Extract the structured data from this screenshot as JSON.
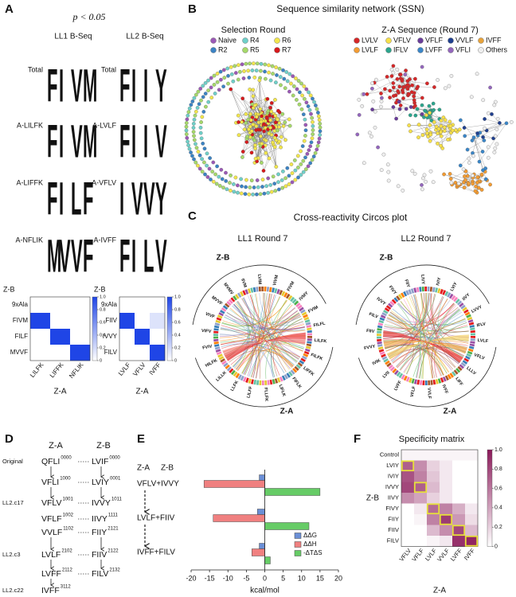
{
  "panel_labels": [
    "A",
    "B",
    "C",
    "D",
    "E",
    "F"
  ],
  "logos": {
    "title": "p < 0.05",
    "columns": [
      {
        "title": "LL1 B-Seq",
        "rows": [
          {
            "label": "Total",
            "letters": [
              "F",
              "I",
              "V",
              "M"
            ]
          },
          {
            "label": "A-LILFK",
            "letters": [
              "F",
              "I",
              "V",
              "M"
            ]
          },
          {
            "label": "A-LIFFK",
            "letters": [
              "F",
              "I",
              "L",
              "F"
            ]
          },
          {
            "label": "A-NFLIK",
            "letters": [
              "M",
              "V",
              "V",
              "F"
            ]
          }
        ]
      },
      {
        "title": "LL2 B-Seq",
        "rows": [
          {
            "label": "Total",
            "letters": [
              "F",
              "I",
              "I",
              "Y"
            ]
          },
          {
            "label": "A-LVLF",
            "letters": [
              "F",
              "I",
              "I",
              "V"
            ]
          },
          {
            "label": "A-VFLV",
            "letters": [
              "I",
              "V",
              "V",
              "Y"
            ]
          },
          {
            "label": "A-IVFF",
            "letters": [
              "F",
              "I",
              "L",
              "V"
            ]
          }
        ]
      }
    ]
  },
  "ssn": {
    "title": "Sequence similarity network (SSN)",
    "networks": [
      {
        "title": "Selection Round",
        "legend": [
          {
            "name": "Naive",
            "color": "#9b59b6"
          },
          {
            "name": "R2",
            "color": "#3b83c4"
          },
          {
            "name": "R4",
            "color": "#6fd0c9"
          },
          {
            "name": "R5",
            "color": "#a6d96a"
          },
          {
            "name": "R6",
            "color": "#f2e64d"
          },
          {
            "name": "R7",
            "color": "#d7191c"
          }
        ]
      },
      {
        "title": "Z-A Sequence (Round 7)",
        "legend": [
          {
            "name": "LVLV",
            "color": "#d62728"
          },
          {
            "name": "LVLF",
            "color": "#f39c33"
          },
          {
            "name": "VFLV",
            "color": "#f7e04a"
          },
          {
            "name": "IFLV",
            "color": "#2ca58d"
          },
          {
            "name": "VFLF",
            "color": "#6a3d9a"
          },
          {
            "name": "LVFF",
            "color": "#3a86c8"
          },
          {
            "name": "VVLF",
            "color": "#1f3f8f"
          },
          {
            "name": "VFLI",
            "color": "#9467bd"
          },
          {
            "name": "IVFF",
            "color": "#e8a33a"
          },
          {
            "name": "Others",
            "color": "#eeeeee"
          }
        ]
      }
    ]
  },
  "circos": {
    "title": "Cross-reactivity Circos plot",
    "plots": [
      {
        "title": "LL1 Round 7",
        "zb_label": "Z-B",
        "za_label": "Z-A",
        "labels": [
          "FILFL",
          "LILFK",
          "FILFK",
          "LIFFK",
          "FIFLK",
          "LIFLK",
          "FLLFK",
          "LILFF",
          "LLFK",
          "LILLK",
          "HILFK",
          "FVIV",
          "VIFV",
          "VIVF",
          "MVVF",
          "MVMV",
          "IIVM",
          "LVIM",
          "VIVM",
          "FIVM",
          "IVMY",
          "FVIM"
        ]
      },
      {
        "title": "LL2 Round 7",
        "zb_label": "Z-B",
        "za_label": "Z-A",
        "labels": [
          "IFLV",
          "LVLF",
          "VFLV",
          "LLLV",
          "LIFF",
          "IVFF",
          "VVLF",
          "VFLF",
          "LVFF",
          "LVII",
          "IVIK",
          "FVVY",
          "FIIV",
          "FILV",
          "IVVY",
          "FIVY",
          "FIIY",
          "LIVY",
          "IVIY",
          "LVIY",
          "IIVY",
          "LVVY"
        ]
      }
    ]
  },
  "pathway": {
    "za_header": "Z-A",
    "zb_header": "Z-B",
    "rows": [
      {
        "label": "Original",
        "za": {
          "seq": "QFLI",
          "code": "0000"
        },
        "zb": {
          "seq": "LVIF",
          "code": "0000"
        }
      },
      {
        "za": {
          "seq": "VFLI",
          "code": "1000"
        },
        "zb": {
          "seq": "LVIY",
          "code": "0001"
        }
      },
      {
        "label": "LL2.c17",
        "za": {
          "seq": "VFLV",
          "code": "1001"
        },
        "zb": {
          "seq": "IVVY",
          "code": "1011"
        }
      },
      {
        "za": {
          "seq": "VFLF",
          "code": "1002"
        },
        "zb": {
          "seq": "IIVY",
          "code": "1111"
        }
      },
      {
        "za": {
          "seq": "VVLF",
          "code": "1102"
        },
        "zb": {
          "seq": "FIIY",
          "code": "2121"
        }
      },
      {
        "label": "LL2.c3",
        "za": {
          "seq": "LVLF",
          "code": "2102"
        },
        "zb": {
          "seq": "FIIV",
          "code": "2122"
        }
      },
      {
        "za": {
          "seq": "LVFF",
          "code": "2112"
        },
        "zb": {
          "seq": "FILV",
          "code": "2132"
        }
      },
      {
        "label": "LL2.c22",
        "za": {
          "seq": "IVFF",
          "code": "3112"
        }
      }
    ]
  },
  "chart_data": [
    {
      "type": "heatmap",
      "ylabel": "Z-B",
      "xlabel": "Z-A",
      "rows": [
        "9xAla",
        "FIVM",
        "FILF",
        "MVVF"
      ],
      "columns": [
        "LILFK",
        "LIFFK",
        "NFLIK"
      ],
      "values": [
        [
          0,
          0,
          0
        ],
        [
          1,
          0,
          0
        ],
        [
          0,
          1,
          0
        ],
        [
          0,
          0,
          1
        ]
      ],
      "clim": [
        0,
        1
      ],
      "colors": [
        "#ffffff",
        "#1f45e6"
      ],
      "colorbar_ticks": [
        0,
        0.2,
        0.4,
        0.6,
        0.8,
        {
          "value": 1,
          "label": "1.0"
        }
      ]
    },
    {
      "type": "heatmap",
      "ylabel": "Z-B",
      "xlabel": "Z-A",
      "rows": [
        "9xAla",
        "FIIV",
        "IVVY",
        "FILV"
      ],
      "columns": [
        "LVLF",
        "VFLV",
        "IVFF"
      ],
      "values": [
        [
          0,
          0,
          0
        ],
        [
          1,
          0,
          0.15
        ],
        [
          0,
          1,
          0
        ],
        [
          0,
          0,
          1
        ]
      ],
      "clim": [
        0,
        1
      ],
      "colors": [
        "#ffffff",
        "#1f45e6"
      ],
      "colorbar_ticks": [
        0,
        0.2,
        0.4,
        0.6,
        0.8,
        {
          "value": 1,
          "label": "1.0"
        }
      ]
    },
    {
      "type": "barh",
      "category_header": [
        "Z-A",
        "Z-B"
      ],
      "categories": [
        "VFLV+IVVY",
        "LVLF+FIIV",
        "IVFF+FILV"
      ],
      "series": [
        {
          "name": "ΔΔG",
          "color": "#6b8fd6",
          "values": [
            -1.5,
            -2,
            -1.5
          ]
        },
        {
          "name": "ΔΔH",
          "color": "#f08080",
          "values": [
            -16.5,
            -14,
            -3.5
          ]
        },
        {
          "name": "-ΔTΔS",
          "color": "#66cc66",
          "values": [
            15,
            12,
            1.5
          ]
        }
      ],
      "xlim": [
        -20,
        20
      ],
      "xticks": [
        -20,
        -15,
        -10,
        -5,
        0,
        5,
        10,
        15,
        20
      ],
      "xlabel": "kcal/mol"
    },
    {
      "type": "heatmap",
      "title": "Specificity matrix",
      "ylabel": "Z-B",
      "xlabel": "Z-A",
      "rows": [
        "Control",
        "LVIY",
        "IVIY",
        "IVVY",
        "IIVY",
        "FIVY",
        "FIIY",
        "FIIV",
        "FILV"
      ],
      "columns": [
        "VFLV",
        "VFLF",
        "LVLF",
        "VVLF",
        "LVFF",
        "IVFF"
      ],
      "values": [
        [
          0.05,
          0.05,
          0.05,
          0.05,
          0.05,
          0.05
        ],
        [
          0.7,
          0.5,
          0.2,
          0.1,
          0,
          0
        ],
        [
          0.75,
          0.55,
          0.25,
          0.1,
          0,
          0
        ],
        [
          0.8,
          0.7,
          0.3,
          0.1,
          0,
          0
        ],
        [
          0.5,
          0.4,
          0.2,
          0.1,
          0,
          0
        ],
        [
          0,
          0.1,
          0.65,
          0.55,
          0.35,
          0.1
        ],
        [
          0,
          0.05,
          0.55,
          0.85,
          0.45,
          0.15
        ],
        [
          0,
          0,
          0.3,
          0.5,
          0.8,
          0.3
        ],
        [
          0,
          0,
          0.05,
          0.1,
          0.9,
          0.95
        ]
      ],
      "highlight": [
        [
          1,
          0
        ],
        [
          3,
          1
        ],
        [
          5,
          2
        ],
        [
          6,
          3
        ],
        [
          7,
          4
        ],
        [
          8,
          5
        ]
      ],
      "highlight_color": "#e6e03a",
      "clim": [
        0,
        1
      ],
      "colors": [
        "#ffffff",
        "#8b1a5a"
      ],
      "colorbar_ticks": [
        0,
        0.2,
        0.4,
        0.6,
        0.8,
        {
          "value": 1,
          "label": "1.0"
        }
      ]
    }
  ]
}
